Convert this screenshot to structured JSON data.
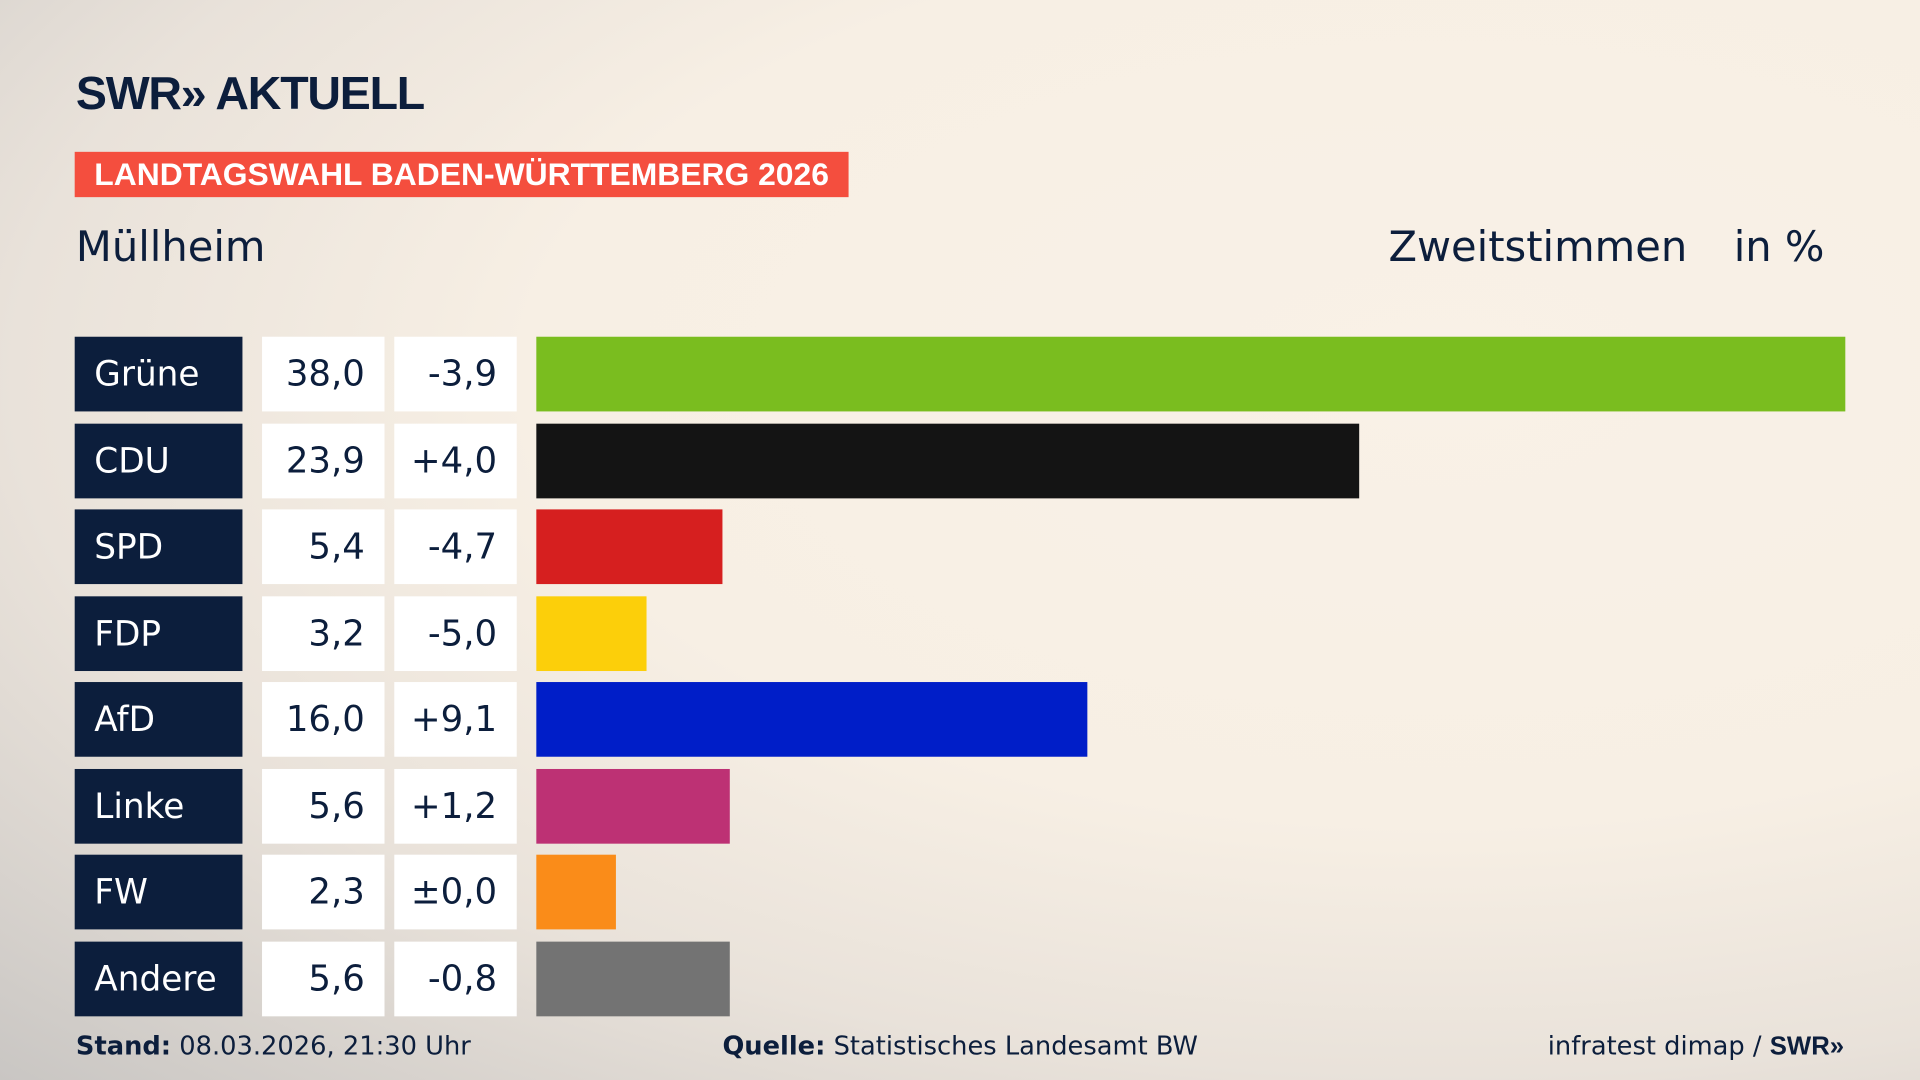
{
  "header": {
    "logo": "SWR» AKTUELL",
    "banner": "LANDTAGSWAHL BADEN-WÜRTTEMBERG 2026",
    "place": "Müllheim",
    "vote_type": "Zweitstimmen",
    "unit": "in %"
  },
  "chart_data": {
    "type": "bar",
    "orientation": "horizontal",
    "categories": [
      "Grüne",
      "CDU",
      "SPD",
      "FDP",
      "AfD",
      "Linke",
      "FW",
      "Andere"
    ],
    "values": [
      38.0,
      23.9,
      5.4,
      3.2,
      16.0,
      5.6,
      2.3,
      5.6
    ],
    "values_label": [
      "38,0",
      "23,9",
      "5,4",
      "3,2",
      "16,0",
      "5,6",
      "2,3",
      "5,6"
    ],
    "change_label": [
      "-3,9",
      "+4,0",
      "-4,7",
      "-5,0",
      "+9,1",
      "+1,2",
      "±0,0",
      "-0,8"
    ],
    "change": [
      -3.9,
      4.0,
      -4.7,
      -5.0,
      9.1,
      1.2,
      0.0,
      -0.8
    ],
    "colors": [
      "#7abd1f",
      "#141414",
      "#d61f1f",
      "#fccf0a",
      "#001ec8",
      "#bd3174",
      "#fa8c19",
      "#737373"
    ],
    "xlim": [
      0,
      38
    ],
    "grid": false
  },
  "footer": {
    "stand_label": "Stand:",
    "stand": "08.03.2026, 21:30 Uhr",
    "source_label": "Quelle:",
    "source": "Statistisches Landesamt BW",
    "credit": "infratest dimap / ",
    "credit_logo": "SWR»"
  }
}
